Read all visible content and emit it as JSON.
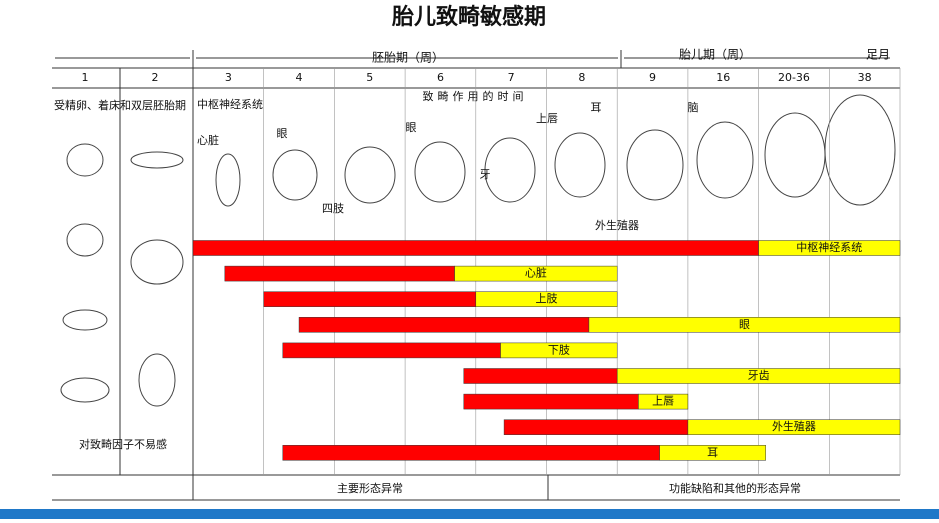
{
  "title": "胎儿致畸敏感期",
  "header": {
    "embryo_period": "胚胎期（周）",
    "fetal_period": "胎儿期（周）",
    "term": "足月"
  },
  "columns": [
    "1",
    "2",
    "3",
    "4",
    "5",
    "6",
    "7",
    "8",
    "9",
    "16",
    "20-36",
    "38"
  ],
  "timing_caption": "致畸作用的时间",
  "left_top": "受精卵、着床和双层胚胎期",
  "left_bottom": "对致畸因子不易感",
  "annotations": [
    "中枢神经系统",
    "心脏",
    "眼",
    "眼",
    "四肢",
    "牙",
    "上唇",
    "耳",
    "脑",
    "外生殖器"
  ],
  "bars": [
    {
      "label": "中枢神经系统",
      "start": 0,
      "red_end": 8,
      "end": 10
    },
    {
      "label": "心脏",
      "start": 0.45,
      "red_end": 3.7,
      "end": 6
    },
    {
      "label": "上肢",
      "start": 1,
      "red_end": 4,
      "end": 6
    },
    {
      "label": "眼",
      "start": 1.5,
      "red_end": 5.6,
      "end": 10
    },
    {
      "label": "下肢",
      "start": 1.27,
      "red_end": 4.35,
      "end": 6
    },
    {
      "label": "牙齿",
      "start": 3.83,
      "red_end": 6,
      "end": 10
    },
    {
      "label": "上唇",
      "start": 3.83,
      "red_end": 6.3,
      "end": 7
    },
    {
      "label": "外生殖器",
      "start": 4.4,
      "red_end": 7,
      "end": 10
    },
    {
      "label": "耳",
      "start": 1.27,
      "red_end": 6.6,
      "end": 8.1
    }
  ],
  "footer": {
    "major": "主要形态异常",
    "minor": "功能缺陷和其他的形态异常"
  }
}
